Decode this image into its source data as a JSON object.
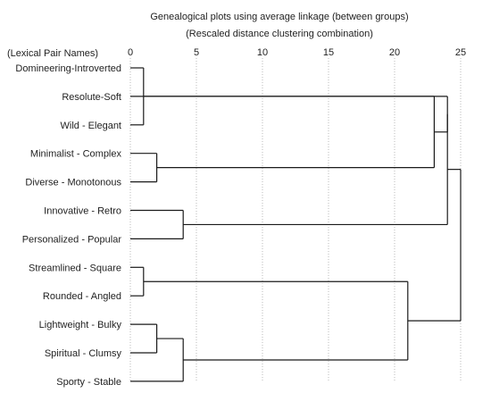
{
  "chart_data": {
    "type": "dendrogram",
    "title": "Genealogical plots using average linkage (between groups)",
    "subtitle": "(Rescaled distance clustering combination)",
    "ylabel": "(Lexical Pair Names)",
    "xlim": [
      0,
      25
    ],
    "x_ticks": [
      "0",
      "5",
      "10",
      "15",
      "20",
      "25"
    ],
    "leaves": [
      "Domineering-Introverted",
      "Resolute-Soft",
      "Wild - Elegant",
      "Minimalist - Complex",
      "Diverse - Monotonous",
      "Innovative - Retro",
      "Personalized - Popular",
      "Streamlined - Square",
      "Rounded - Angled",
      "Lightweight - Bulky",
      "Spiritual - Clumsy",
      "Sporty - Stable"
    ],
    "merges": [
      {
        "a": "L0",
        "b": "L2",
        "distance": 1
      },
      {
        "a": "L7",
        "b": "L8",
        "distance": 1
      },
      {
        "a": "L9",
        "b": "L10",
        "distance": 2
      },
      {
        "a": "L3",
        "b": "L4",
        "distance": 2
      },
      {
        "a": "L5",
        "b": "L6",
        "distance": 4
      },
      {
        "a": "C2",
        "b": "L11",
        "distance": 4
      },
      {
        "a": "C1",
        "b": "C5",
        "distance": 21
      },
      {
        "a": "L1",
        "b": "C3",
        "distance": 23
      },
      {
        "a": "C7",
        "b": "C0",
        "distance": 24
      },
      {
        "a": "C8",
        "b": "C4",
        "distance": 24
      },
      {
        "a": "C9",
        "b": "C6",
        "distance": 25
      }
    ]
  }
}
